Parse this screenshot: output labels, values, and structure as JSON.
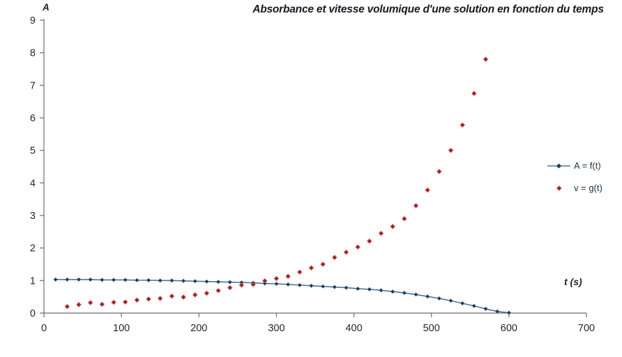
{
  "chart_data": {
    "type": "scatter",
    "title": "Absorbance et vitesse volumique d'une solution en fonction du temps",
    "y_axis_label": "A",
    "x_axis_label": "t (s)",
    "xlim": [
      0,
      700
    ],
    "ylim": [
      0,
      9
    ],
    "x_ticks": [
      0,
      100,
      200,
      300,
      400,
      500,
      600,
      700
    ],
    "y_ticks": [
      0,
      1,
      2,
      3,
      4,
      5,
      6,
      7,
      8,
      9
    ],
    "grid": false,
    "legend_position": "right",
    "colors": {
      "background": "#ffffff",
      "axis": "#6e6e6e",
      "tick_label": "#262626",
      "title": "#181822",
      "series1_line": "#4d7596",
      "series1_marker": "#1c3e5e",
      "series2_outer": "#c04343",
      "series2_inner": "#871c1f",
      "legend_text": "#1c2f42"
    },
    "series": [
      {
        "name": "A = f(t)",
        "style": "line+markers",
        "marker": "diamond",
        "x": [
          15,
          30,
          45,
          60,
          75,
          90,
          105,
          120,
          135,
          150,
          165,
          180,
          195,
          210,
          225,
          240,
          255,
          270,
          285,
          300,
          315,
          330,
          345,
          360,
          375,
          390,
          405,
          420,
          435,
          450,
          465,
          480,
          495,
          510,
          525,
          540,
          555,
          570,
          585,
          600
        ],
        "y": [
          1.03,
          1.03,
          1.03,
          1.03,
          1.02,
          1.02,
          1.02,
          1.01,
          1.01,
          1.0,
          1.0,
          0.99,
          0.98,
          0.97,
          0.96,
          0.95,
          0.94,
          0.93,
          0.91,
          0.9,
          0.88,
          0.86,
          0.84,
          0.82,
          0.8,
          0.78,
          0.75,
          0.73,
          0.7,
          0.66,
          0.62,
          0.57,
          0.51,
          0.45,
          0.38,
          0.3,
          0.22,
          0.13,
          0.05,
          0.01
        ]
      },
      {
        "name": "v = g(t)",
        "style": "markers",
        "marker": "diamond",
        "x": [
          30,
          45,
          60,
          75,
          90,
          105,
          120,
          135,
          150,
          165,
          180,
          195,
          210,
          225,
          240,
          255,
          270,
          285,
          300,
          315,
          330,
          345,
          360,
          375,
          390,
          405,
          420,
          435,
          450,
          465,
          480,
          495,
          510,
          525,
          540,
          555,
          570
        ],
        "y": [
          0.2,
          0.26,
          0.32,
          0.27,
          0.33,
          0.34,
          0.4,
          0.43,
          0.45,
          0.52,
          0.49,
          0.56,
          0.61,
          0.69,
          0.78,
          0.86,
          0.88,
          0.99,
          1.06,
          1.13,
          1.26,
          1.39,
          1.5,
          1.71,
          1.87,
          2.03,
          2.21,
          2.45,
          2.66,
          2.9,
          3.3,
          3.78,
          4.35,
          5.0,
          5.78,
          6.75,
          7.8
        ]
      }
    ]
  }
}
